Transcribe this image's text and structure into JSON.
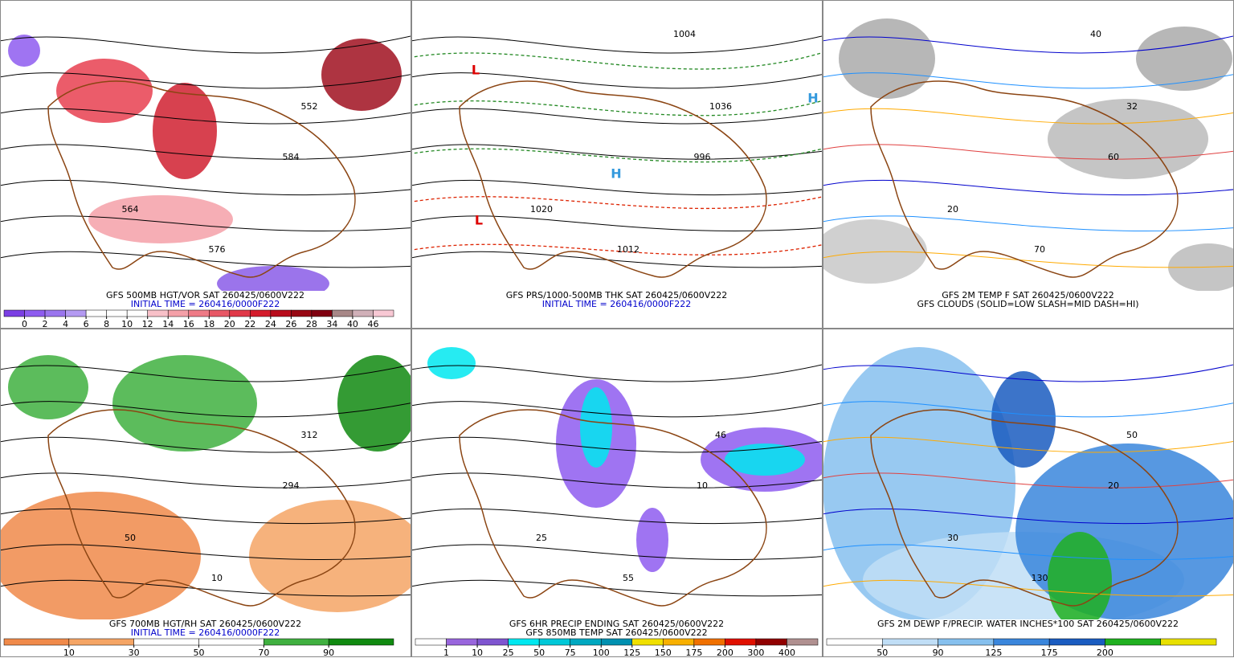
{
  "panels": [
    {
      "caption": [
        "GFS 500MB HGT/VOR SAT 260425/0600V222",
        "INITIAL TIME = 260416/0000F222"
      ],
      "caption_colors": [
        "#000000",
        "#0000cc"
      ],
      "map_labels": [
        "552",
        "564",
        "576",
        "584"
      ],
      "colorbar": {
        "ticks": [
          0,
          2,
          4,
          6,
          8,
          10,
          12,
          14,
          16,
          18,
          20,
          22,
          24,
          26,
          28,
          34,
          40,
          46
        ],
        "colors": [
          "#7b3fe4",
          "#8e5cf0",
          "#9a75ee",
          "#b49af2",
          "#ffffff",
          "#ffffff",
          "#ffffff",
          "#f8c0c8",
          "#f4a0a8",
          "#ee7a86",
          "#e85866",
          "#e03848",
          "#d41c2c",
          "#b80c1c",
          "#980814",
          "#800010",
          "#a88888",
          "#d0b0b8",
          "#f8c8d4"
        ]
      }
    },
    {
      "caption": [
        "GFS PRS/1000-500MB THK SAT 260425/0600V222",
        "INITIAL TIME = 260416/0000F222"
      ],
      "caption_colors": [
        "#000000",
        "#0000cc"
      ],
      "map_labels": [
        "1036",
        "1020",
        "1012",
        "996",
        "1004",
        "L",
        "L",
        "H",
        "H"
      ]
    },
    {
      "caption": [
        "GFS 2M TEMP F SAT 260425/0600V222",
        "GFS CLOUDS (SOLID=LOW SLASH=MID DASH=HI)"
      ],
      "caption_colors": [
        "#000000",
        "#000000"
      ],
      "map_labels": [
        "32",
        "20",
        "70",
        "60",
        "40"
      ]
    },
    {
      "caption": [
        "GFS 700MB HGT/RH SAT 260425/0600V222",
        "INITIAL TIME = 260416/0000F222"
      ],
      "caption_colors": [
        "#000000",
        "#0000cc"
      ],
      "map_labels": [
        "312",
        "50",
        "10",
        "294"
      ],
      "colorbar": {
        "ticks": [
          10,
          30,
          50,
          70,
          90
        ],
        "colors": [
          "#f08a4a",
          "#f5a565",
          "#ffffff",
          "#ffffff",
          "#40b040",
          "#108a10"
        ]
      }
    },
    {
      "caption": [
        "GFS 6HR PRECIP ENDING SAT 260425/0600V222",
        "GFS 850MB TEMP SAT 260425/0600V222"
      ],
      "caption_colors": [
        "#000000",
        "#000000"
      ],
      "map_labels": [
        "46",
        "25",
        "55",
        "10"
      ],
      "colorbar": {
        "ticks": [
          1,
          10,
          25,
          50,
          75,
          100,
          125,
          150,
          175,
          200,
          300,
          400
        ],
        "colors": [
          "#ffffff",
          "#9966dd",
          "#7f55d0",
          "#00e8f0",
          "#00c8d8",
          "#00a8c0",
          "#0090b0",
          "#f0e000",
          "#f8b000",
          "#f07000",
          "#e01000",
          "#900000",
          "#b09090"
        ]
      }
    },
    {
      "caption": [
        "GFS 2M DEWP F/PRECIP. WATER INCHES*100 SAT 260425/0600V222"
      ],
      "caption_colors": [
        "#000000"
      ],
      "map_labels": [
        "50",
        "30",
        "130",
        "20"
      ],
      "colorbar": {
        "ticks": [
          50,
          90,
          125,
          175,
          200
        ],
        "colors": [
          "#ffffff",
          "#c0def6",
          "#86c0ee",
          "#3a86dc",
          "#1a5cc0",
          "#20b020",
          "#e8e000"
        ]
      }
    }
  ]
}
